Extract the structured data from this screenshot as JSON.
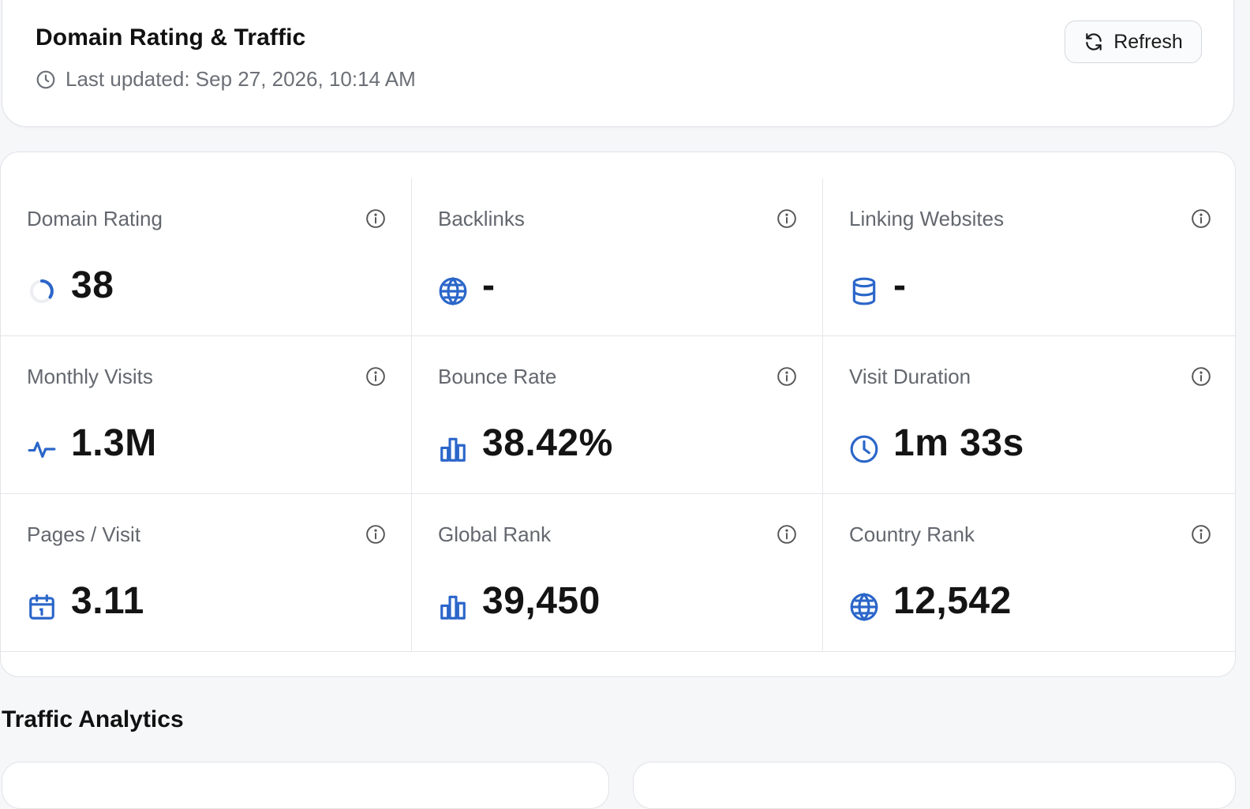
{
  "header": {
    "title": "Domain Rating & Traffic",
    "last_updated": "Last updated: Sep 27, 2026, 10:14 AM",
    "refresh_label": "Refresh"
  },
  "metrics": [
    {
      "label": "Domain Rating",
      "value": "38",
      "icon": "progress-ring-icon"
    },
    {
      "label": "Backlinks",
      "value": "-",
      "icon": "globe-icon"
    },
    {
      "label": "Linking Websites",
      "value": "-",
      "icon": "database-icon"
    },
    {
      "label": "Monthly Visits",
      "value": "1.3M",
      "icon": "activity-icon"
    },
    {
      "label": "Bounce Rate",
      "value": "38.42%",
      "icon": "bar-chart-icon"
    },
    {
      "label": "Visit Duration",
      "value": "1m 33s",
      "icon": "clock-icon"
    },
    {
      "label": "Pages / Visit",
      "value": "3.11",
      "icon": "calendar-icon"
    },
    {
      "label": "Global Rank",
      "value": "39,450",
      "icon": "bar-chart-icon"
    },
    {
      "label": "Country Rank",
      "value": "12,542",
      "icon": "globe-icon"
    }
  ],
  "section": {
    "title": "Traffic Analytics"
  },
  "colors": {
    "accent": "#2b66c9",
    "muted_text": "#63676e",
    "border": "#e4e6ea"
  }
}
